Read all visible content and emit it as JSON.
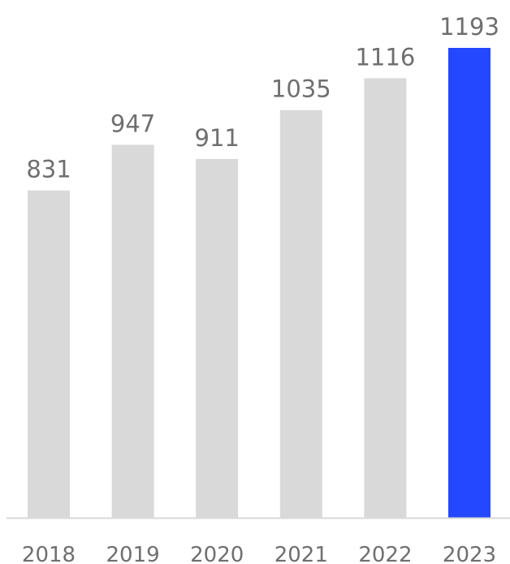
{
  "chart_data": {
    "type": "bar",
    "categories": [
      "2018",
      "2019",
      "2020",
      "2021",
      "2022",
      "2023"
    ],
    "values": [
      831,
      947,
      911,
      1035,
      1116,
      1193
    ],
    "data_labels": [
      "831",
      "947",
      "911",
      "1035",
      "1116",
      "1193"
    ],
    "title": "",
    "xlabel": "",
    "ylabel": "",
    "ylim": [
      0,
      1193
    ],
    "grid": false,
    "legend": "none",
    "colors": {
      "bar": "#d9d9d9",
      "highlight": "#2448ff",
      "highlight_category": "2023",
      "baseline": "#d9d9d9",
      "text": "#6f6f6f"
    }
  }
}
